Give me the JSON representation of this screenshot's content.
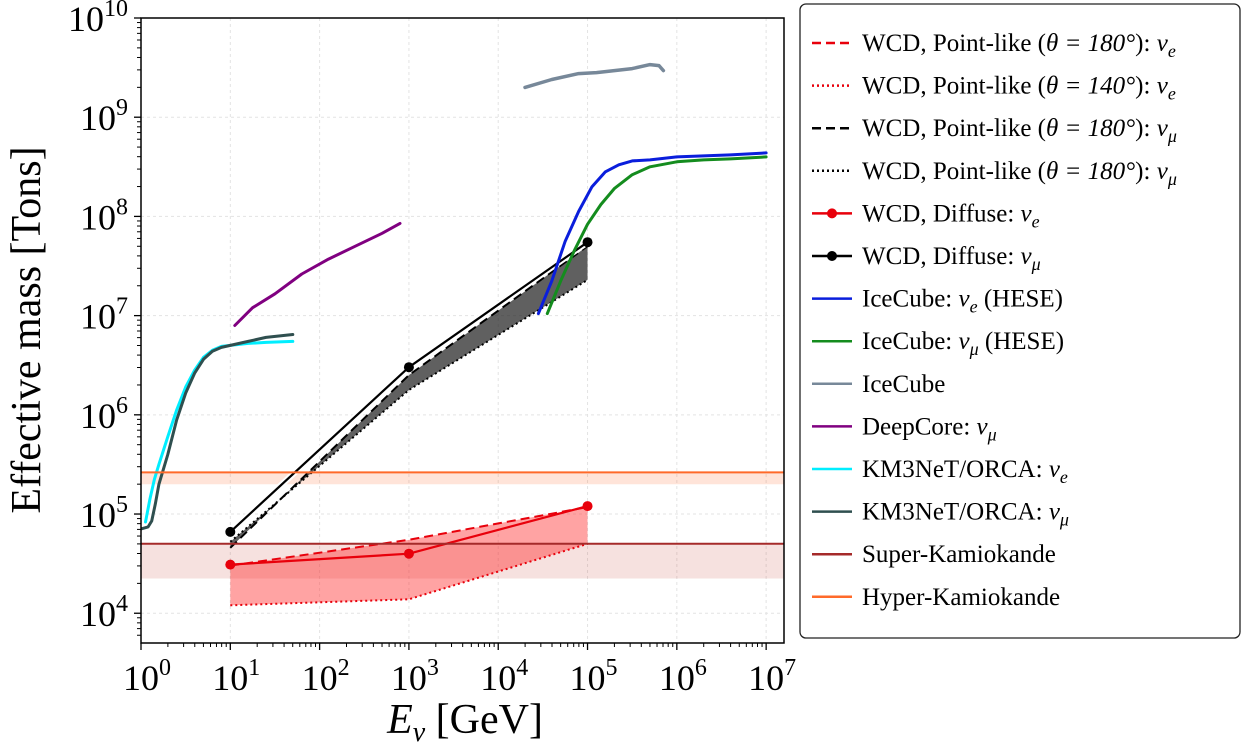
{
  "chart_data": {
    "type": "line",
    "xscale": "log",
    "yscale": "log",
    "xlim_log10": [
      0,
      7.2
    ],
    "ylim_log10": [
      3.7,
      10
    ],
    "xticks_log10": [
      0,
      1,
      2,
      3,
      4,
      5,
      6,
      7
    ],
    "yticks_log10": [
      4,
      5,
      6,
      7,
      8,
      9,
      10
    ],
    "tick_base": "10",
    "xlabel": {
      "var": "E",
      "sub": "ν",
      "unit": " [GeV]"
    },
    "ylabel": "Effective mass [Tons]",
    "grid": true,
    "legend_position": "right, outside",
    "bands": [
      {
        "name": "WCD electron-neutrino point-like band",
        "color": "#ff3333",
        "opacity": 0.45,
        "x_log10": [
          1,
          3,
          5
        ],
        "upper_log10": [
          4.48,
          4.74,
          5.07
        ],
        "lower_log10": [
          4.08,
          4.14,
          4.7
        ]
      },
      {
        "name": "WCD muon-neutrino point-like band",
        "color": "#222222",
        "opacity": 0.72,
        "x_log10": [
          1,
          3,
          5
        ],
        "upper_log10": [
          4.66,
          6.4,
          7.7
        ],
        "lower_log10": [
          4.72,
          6.25,
          7.36
        ]
      }
    ],
    "hbands": [
      {
        "name": "Super-Kamiokande band",
        "color": "#c0392b",
        "opacity": 0.15,
        "lower_log10": 4.35,
        "upper_log10": 4.7
      },
      {
        "name": "Hyper-Kamiokande band",
        "color": "#ff6a2a",
        "opacity": 0.18,
        "lower_log10": 5.3,
        "upper_log10": 5.42
      }
    ],
    "series": [
      {
        "name": "WCD, Point-like (θ = 180°): ν_e",
        "color": "#e8000b",
        "style": "dashed",
        "width": 2,
        "x_log10": [
          1,
          3,
          5
        ],
        "y_log10": [
          4.48,
          4.74,
          5.07
        ]
      },
      {
        "name": "WCD, Point-like (θ = 140°): ν_e",
        "color": "#e8000b",
        "style": "dotted",
        "width": 2,
        "x_log10": [
          1,
          3,
          5
        ],
        "y_log10": [
          4.08,
          4.14,
          4.7
        ]
      },
      {
        "name": "WCD, Point-like (θ = 180°): ν_μ",
        "color": "#000000",
        "style": "dashed",
        "width": 2,
        "x_log10": [
          1,
          3,
          5
        ],
        "y_log10": [
          4.66,
          6.4,
          7.7
        ]
      },
      {
        "name": "WCD, Point-like (θ = 180°): ν_μ",
        "color": "#000000",
        "style": "dotted",
        "width": 2,
        "x_log10": [
          1,
          3,
          5
        ],
        "y_log10": [
          4.72,
          6.25,
          7.36
        ]
      },
      {
        "name": "WCD, Diffuse: ν_e",
        "color": "#e8000b",
        "style": "solid",
        "width": 2.2,
        "markers": true,
        "x_log10": [
          1,
          3,
          5
        ],
        "y_log10": [
          4.49,
          4.6,
          5.08
        ]
      },
      {
        "name": "WCD, Diffuse: ν_μ",
        "color": "#000000",
        "style": "solid",
        "width": 2.2,
        "markers": true,
        "halo": true,
        "x_log10": [
          1,
          3,
          5
        ],
        "y_log10": [
          4.82,
          6.48,
          7.74
        ]
      },
      {
        "name": "IceCube: ν_e (HESE)",
        "color": "#0a1edc",
        "style": "solid",
        "width": 3,
        "x_log10": [
          4.45,
          4.6,
          4.75,
          4.9,
          5.05,
          5.2,
          5.35,
          5.5,
          5.7,
          6.0,
          6.3,
          6.6,
          7.0
        ],
        "y_log10": [
          7.02,
          7.35,
          7.75,
          8.05,
          8.3,
          8.45,
          8.52,
          8.56,
          8.57,
          8.6,
          8.61,
          8.62,
          8.64
        ]
      },
      {
        "name": "IceCube: ν_μ (HESE)",
        "color": "#148c1e",
        "style": "solid",
        "width": 3,
        "x_log10": [
          4.55,
          4.7,
          4.85,
          5.0,
          5.15,
          5.3,
          5.5,
          5.7,
          6.0,
          6.3,
          6.6,
          7.0
        ],
        "y_log10": [
          7.02,
          7.35,
          7.65,
          7.92,
          8.12,
          8.28,
          8.42,
          8.5,
          8.55,
          8.57,
          8.58,
          8.6
        ]
      },
      {
        "name": "IceCube",
        "color": "#778899",
        "style": "solid",
        "width": 3.5,
        "x_log10": [
          4.3,
          4.6,
          4.9,
          5.1,
          5.3,
          5.5,
          5.7,
          5.8,
          5.85
        ],
        "y_log10": [
          9.3,
          9.38,
          9.44,
          9.45,
          9.47,
          9.49,
          9.53,
          9.52,
          9.47
        ]
      },
      {
        "name": "DeepCore: ν_μ",
        "color": "#800080",
        "style": "solid",
        "width": 3,
        "x_log10": [
          1.05,
          1.25,
          1.5,
          1.8,
          2.1,
          2.4,
          2.7,
          2.9
        ],
        "y_log10": [
          6.9,
          7.08,
          7.22,
          7.42,
          7.57,
          7.7,
          7.83,
          7.93
        ]
      },
      {
        "name": "KM3NeT/ORCA: ν_e",
        "color": "#00eeff",
        "style": "solid",
        "width": 3,
        "x_log10": [
          0.05,
          0.1,
          0.15,
          0.2,
          0.3,
          0.4,
          0.5,
          0.6,
          0.7,
          0.8,
          0.9,
          1.0,
          1.2,
          1.4,
          1.7
        ],
        "y_log10": [
          4.92,
          5.15,
          5.35,
          5.5,
          5.78,
          6.05,
          6.28,
          6.45,
          6.58,
          6.65,
          6.69,
          6.7,
          6.72,
          6.73,
          6.74
        ]
      },
      {
        "name": "KM3NeT/ORCA: ν_μ",
        "color": "#2f4f4f",
        "style": "solid",
        "width": 3,
        "x_log10": [
          0.0,
          0.08,
          0.12,
          0.16,
          0.2,
          0.3,
          0.4,
          0.5,
          0.6,
          0.7,
          0.8,
          0.9,
          1.0,
          1.2,
          1.4,
          1.7
        ],
        "y_log10": [
          4.85,
          4.87,
          4.93,
          5.1,
          5.3,
          5.6,
          5.95,
          6.22,
          6.42,
          6.56,
          6.64,
          6.68,
          6.7,
          6.74,
          6.78,
          6.81
        ]
      },
      {
        "name": "Super-Kamiokande",
        "color": "#a52a2a",
        "style": "solid",
        "width": 2,
        "hline_log10": 4.7
      },
      {
        "name": "Hyper-Kamiokande",
        "color": "#ff6a2a",
        "style": "solid",
        "width": 2,
        "hline_log10": 5.42
      }
    ],
    "legend": [
      {
        "label": "WCD, Point-like (",
        "theta": "θ = 180°",
        "tail": "): ",
        "nu": "ν",
        "flavor": "e",
        "color": "#e8000b",
        "style": "dashed",
        "marker": false
      },
      {
        "label": "WCD, Point-like (",
        "theta": "θ = 140°",
        "tail": "): ",
        "nu": "ν",
        "flavor": "e",
        "color": "#e8000b",
        "style": "dotted",
        "marker": false
      },
      {
        "label": "WCD, Point-like (",
        "theta": "θ = 180°",
        "tail": "): ",
        "nu": "ν",
        "flavor": "μ",
        "color": "#000000",
        "style": "dashed",
        "marker": false
      },
      {
        "label": "WCD, Point-like (",
        "theta": "θ = 180°",
        "tail": "): ",
        "nu": "ν",
        "flavor": "μ",
        "color": "#000000",
        "style": "dotted",
        "marker": false
      },
      {
        "label": "WCD, Diffuse: ",
        "nu": "ν",
        "flavor": "e",
        "color": "#e8000b",
        "style": "solid",
        "marker": true
      },
      {
        "label": "WCD, Diffuse: ",
        "nu": "ν",
        "flavor": "μ",
        "color": "#000000",
        "style": "solid",
        "marker": true
      },
      {
        "label": "IceCube: ",
        "nu": "ν",
        "flavor": "e",
        "tail2": " (HESE)",
        "color": "#0a1edc",
        "style": "solid",
        "marker": false
      },
      {
        "label": "IceCube: ",
        "nu": "ν",
        "flavor": "μ",
        "tail2": " (HESE)",
        "color": "#148c1e",
        "style": "solid",
        "marker": false
      },
      {
        "label": "IceCube",
        "color": "#778899",
        "style": "solid",
        "marker": false
      },
      {
        "label": "DeepCore: ",
        "nu": "ν",
        "flavor": "μ",
        "color": "#800080",
        "style": "solid",
        "marker": false
      },
      {
        "label": "KM3NeT/ORCA: ",
        "nu": "ν",
        "flavor": "e",
        "color": "#00eeff",
        "style": "solid",
        "marker": false
      },
      {
        "label": "KM3NeT/ORCA: ",
        "nu": "ν",
        "flavor": "μ",
        "color": "#2f4f4f",
        "style": "solid",
        "marker": false
      },
      {
        "label": "Super-Kamiokande",
        "color": "#a52a2a",
        "style": "solid",
        "marker": false
      },
      {
        "label": "Hyper-Kamiokande",
        "color": "#ff6a2a",
        "style": "solid",
        "marker": false
      }
    ]
  }
}
